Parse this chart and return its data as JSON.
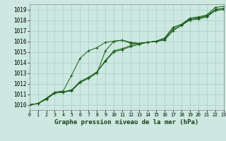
{
  "title": "Graphe pression niveau de la mer (hPa)",
  "bg_color": "#cce8e0",
  "grid_color": "#aacccc",
  "line_color": "#1a5c1a",
  "xlim": [
    0,
    23
  ],
  "ylim": [
    1009.5,
    1019.5
  ],
  "yticks": [
    1010,
    1011,
    1012,
    1013,
    1014,
    1015,
    1016,
    1017,
    1018,
    1019
  ],
  "xticks": [
    0,
    1,
    2,
    3,
    4,
    5,
    6,
    7,
    8,
    9,
    10,
    11,
    12,
    13,
    14,
    15,
    16,
    17,
    18,
    19,
    20,
    21,
    22,
    23
  ],
  "series": [
    [
      1010.0,
      1010.1,
      1010.5,
      1011.1,
      1011.2,
      1011.3,
      1012.1,
      1012.5,
      1013.0,
      1015.1,
      1016.0,
      1016.1,
      1015.9,
      1015.8,
      1015.9,
      1016.0,
      1016.3,
      1017.3,
      1017.6,
      1018.2,
      1018.3,
      1018.5,
      1019.2,
      1019.3
    ],
    [
      1010.0,
      1010.1,
      1010.6,
      1011.1,
      1011.2,
      1011.4,
      1012.2,
      1012.6,
      1013.1,
      1014.1,
      1015.0,
      1015.2,
      1015.5,
      1015.7,
      1015.9,
      1016.0,
      1016.1,
      1017.0,
      1017.5,
      1018.1,
      1018.2,
      1018.4,
      1019.0,
      1019.1
    ],
    [
      1010.0,
      1010.1,
      1010.6,
      1011.2,
      1011.3,
      1012.8,
      1014.4,
      1015.1,
      1015.4,
      1015.9,
      1016.0,
      1016.1,
      1015.8,
      1015.8,
      1015.9,
      1016.0,
      1016.3,
      1017.3,
      1017.6,
      1018.1,
      1018.2,
      1018.4,
      1019.0,
      1019.1
    ],
    [
      1010.0,
      1010.1,
      1010.6,
      1011.1,
      1011.2,
      1011.4,
      1012.1,
      1012.5,
      1013.1,
      1014.2,
      1015.1,
      1015.3,
      1015.6,
      1015.8,
      1015.9,
      1016.0,
      1016.2,
      1017.1,
      1017.5,
      1018.0,
      1018.1,
      1018.3,
      1018.9,
      1019.0
    ]
  ],
  "xlabel_fontsize": 6.5,
  "ytick_fontsize": 5.5,
  "xtick_fontsize": 4.8
}
